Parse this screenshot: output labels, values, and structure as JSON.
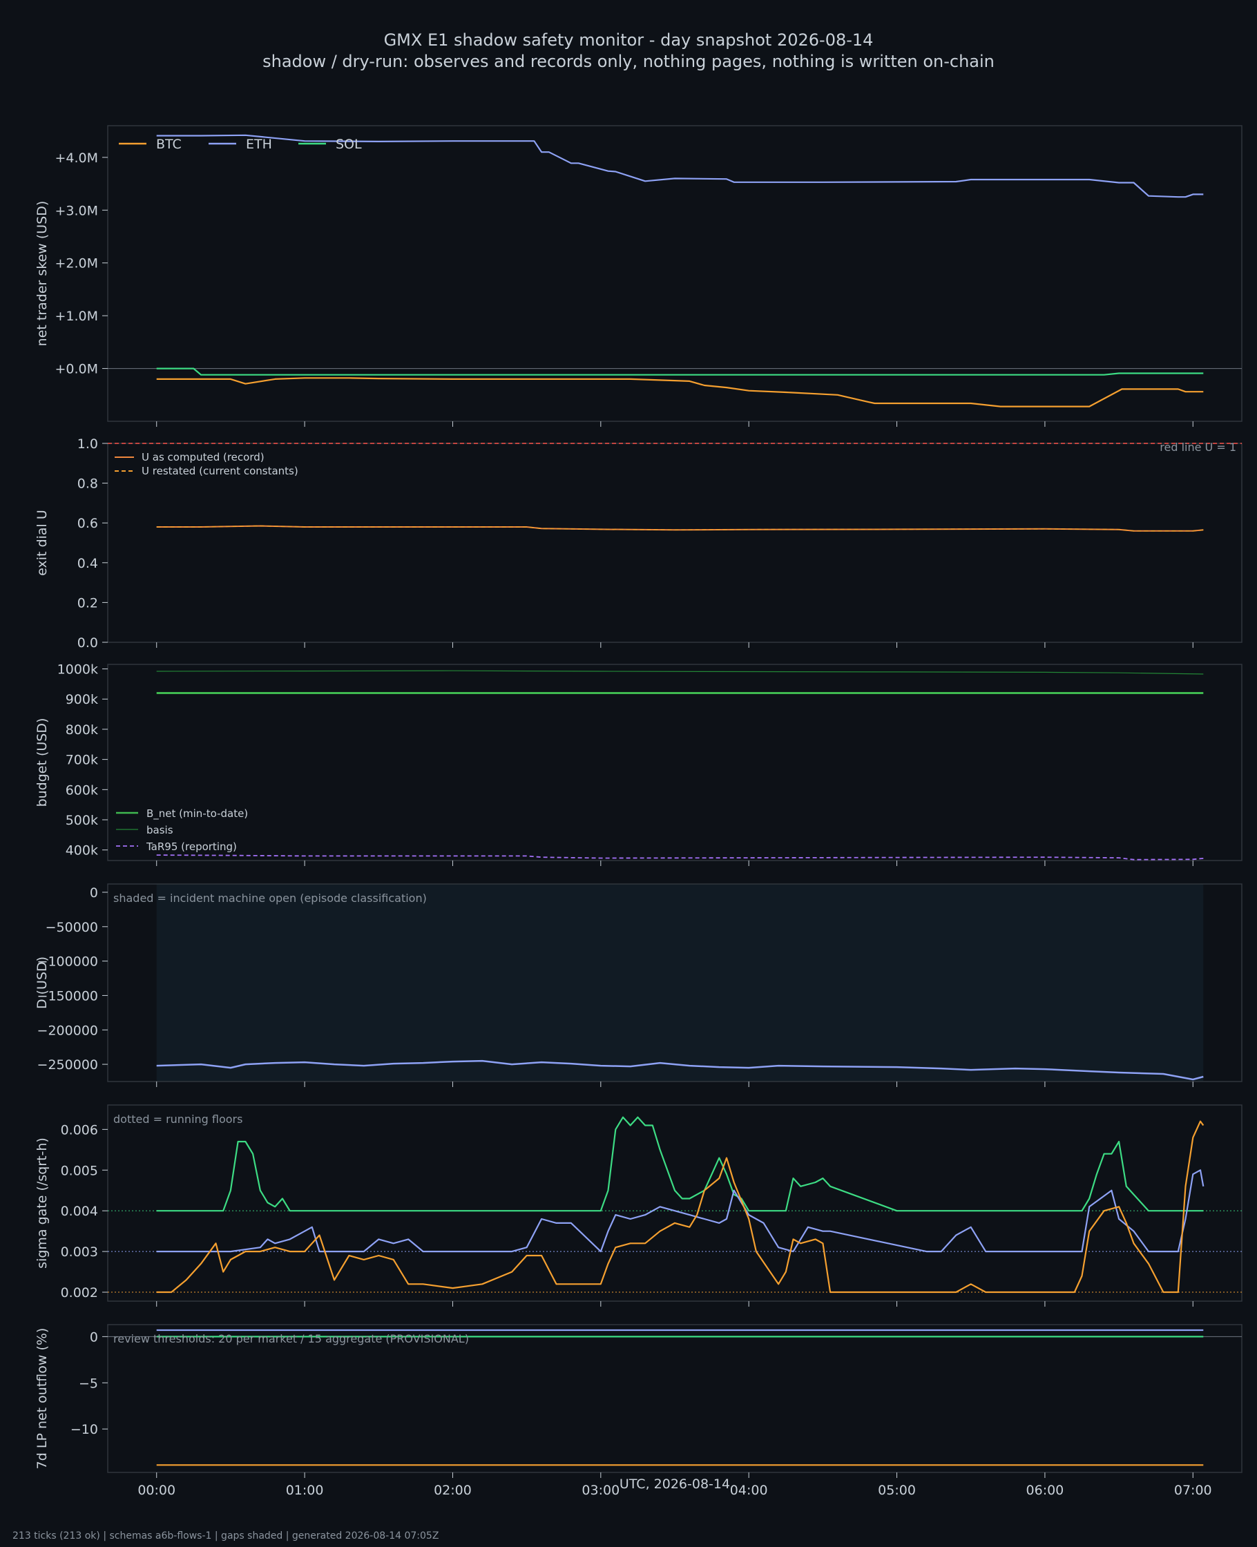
{
  "header": {
    "title": "GMX E1 shadow safety monitor - day snapshot 2026-08-14",
    "subtitle": "shadow / dry-run: observes and records only, nothing pages, nothing is written on-chain"
  },
  "footer": "213 ticks (213 ok) | schemas a6b-flows-1 | gaps shaded | generated 2026-08-14 07:05Z",
  "xaxis": {
    "label": "UTC, 2026-08-14",
    "ticks": [
      "00:00",
      "01:00",
      "02:00",
      "03:00",
      "04:00",
      "05:00",
      "06:00",
      "07:00"
    ],
    "range_hours": [
      -0.33,
      7.33
    ]
  },
  "colors": {
    "background": "#0d1117",
    "btc": "#f5a030",
    "eth": "#8ea2f5",
    "sol": "#3ddc84",
    "u_record": "#f0883e",
    "red_line": "#f85149",
    "budget": "#3fb950",
    "basis": "#238636",
    "tar95": "#a371f7",
    "shade": "#111b24"
  },
  "chart_data": [
    {
      "type": "line",
      "ylabel": "net trader skew (USD)",
      "ylim": [
        -1.0,
        4.6
      ],
      "y_ticks": [
        "+0.0M",
        "+1.0M",
        "+2.0M",
        "+3.0M",
        "+4.0M"
      ],
      "y_tick_values": [
        0,
        1,
        2,
        3,
        4
      ],
      "units": "M USD",
      "legend": [
        "BTC",
        "ETH",
        "SOL"
      ],
      "legend_position": "top-left",
      "zero_line": true,
      "series": [
        {
          "name": "ETH",
          "x": [
            0,
            0.3,
            0.6,
            1,
            1.5,
            2,
            2.4,
            2.55,
            2.6,
            2.65,
            2.8,
            2.85,
            3.05,
            3.1,
            3.3,
            3.5,
            3.85,
            3.9,
            4.5,
            5.4,
            5.5,
            6.3,
            6.5,
            6.6,
            6.7,
            6.9,
            6.95,
            7.0,
            7.07
          ],
          "y": [
            4.41,
            4.41,
            4.42,
            4.31,
            4.3,
            4.31,
            4.31,
            4.31,
            4.1,
            4.1,
            3.89,
            3.89,
            3.74,
            3.73,
            3.55,
            3.6,
            3.59,
            3.53,
            3.53,
            3.54,
            3.58,
            3.58,
            3.52,
            3.52,
            3.27,
            3.25,
            3.25,
            3.3,
            3.3
          ]
        },
        {
          "name": "SOL",
          "x": [
            0,
            0.25,
            0.3,
            1,
            1.5,
            2,
            3,
            4,
            5,
            6,
            6.4,
            6.5,
            7.07
          ],
          "y": [
            0.0,
            0.0,
            -0.12,
            -0.12,
            -0.12,
            -0.12,
            -0.12,
            -0.12,
            -0.12,
            -0.12,
            -0.12,
            -0.09,
            -0.09
          ]
        },
        {
          "name": "BTC",
          "x": [
            0,
            0.5,
            0.6,
            0.8,
            1,
            1.3,
            1.5,
            2,
            2.5,
            3.2,
            3.6,
            3.7,
            3.85,
            4.0,
            4.25,
            4.6,
            4.8,
            4.85,
            5.5,
            5.7,
            6.0,
            6.3,
            6.52,
            6.55,
            6.9,
            6.95,
            7.07
          ],
          "y": [
            -0.2,
            -0.2,
            -0.29,
            -0.2,
            -0.18,
            -0.18,
            -0.19,
            -0.2,
            -0.2,
            -0.2,
            -0.24,
            -0.32,
            -0.36,
            -0.42,
            -0.45,
            -0.5,
            -0.63,
            -0.66,
            -0.66,
            -0.72,
            -0.72,
            -0.72,
            -0.39,
            -0.39,
            -0.39,
            -0.44,
            -0.44
          ]
        }
      ]
    },
    {
      "type": "line",
      "ylabel": "exit dial U",
      "ylim": [
        0.0,
        1.0
      ],
      "y_ticks": [
        "0.0",
        "0.2",
        "0.4",
        "0.6",
        "0.8",
        "1.0"
      ],
      "y_tick_values": [
        0,
        0.2,
        0.4,
        0.6,
        0.8,
        1.0
      ],
      "legend": [
        "U as computed (record)",
        "U restated (current constants)"
      ],
      "legend_position": "top-left",
      "annotation": "red line U = 1",
      "threshold": 1.0,
      "series": [
        {
          "name": "U as computed (record)",
          "x": [
            0,
            0.3,
            0.7,
            1,
            2,
            2.5,
            2.6,
            3,
            3.5,
            4,
            5,
            6,
            6.5,
            6.6,
            7,
            7.07
          ],
          "y": [
            0.58,
            0.58,
            0.585,
            0.58,
            0.58,
            0.58,
            0.572,
            0.568,
            0.565,
            0.567,
            0.568,
            0.57,
            0.567,
            0.56,
            0.56,
            0.565
          ]
        },
        {
          "name": "U restated (current constants)",
          "x": [
            0,
            0.3,
            0.7,
            1,
            2,
            2.5,
            2.6,
            3,
            3.5,
            4,
            5,
            6,
            6.5,
            6.6,
            7,
            7.07
          ],
          "y": [
            0.58,
            0.58,
            0.585,
            0.58,
            0.58,
            0.58,
            0.572,
            0.568,
            0.565,
            0.567,
            0.568,
            0.57,
            0.567,
            0.56,
            0.56,
            0.565
          ]
        }
      ]
    },
    {
      "type": "line",
      "ylabel": "budget (USD)",
      "ylim": [
        365000,
        1015000
      ],
      "y_ticks": [
        "400k",
        "500k",
        "600k",
        "700k",
        "800k",
        "900k",
        "1000k"
      ],
      "y_tick_values": [
        400000,
        500000,
        600000,
        700000,
        800000,
        900000,
        1000000
      ],
      "legend": [
        "B_net (min-to-date)",
        "basis",
        "TaR95 (reporting)"
      ],
      "legend_position": "lower-left",
      "series": [
        {
          "name": "B_net (min-to-date)",
          "x": [
            0,
            7.07
          ],
          "y": [
            920000,
            920000
          ]
        },
        {
          "name": "basis",
          "x": [
            0,
            1,
            2,
            3,
            4,
            5,
            6,
            6.5,
            7.07
          ],
          "y": [
            992000,
            993000,
            994000,
            992000,
            991000,
            990000,
            989000,
            987000,
            983000
          ]
        },
        {
          "name": "TaR95 (reporting)",
          "x": [
            0,
            0.5,
            1,
            2,
            2.5,
            2.6,
            3,
            4,
            5,
            6,
            6.5,
            6.6,
            7,
            7.07
          ],
          "y": [
            383000,
            382000,
            380000,
            380000,
            380000,
            376000,
            373000,
            374000,
            375000,
            376000,
            374000,
            368000,
            369000,
            372000
          ]
        }
      ]
    },
    {
      "type": "line",
      "ylabel": "D (USD)",
      "ylim": [
        -275000,
        12000
      ],
      "y_ticks": [
        "−250000",
        "−200000",
        "−150000",
        "−100000",
        "−50000",
        "0"
      ],
      "y_tick_values": [
        -250000,
        -200000,
        -150000,
        -100000,
        -50000,
        0
      ],
      "annotation": "shaded = incident machine open (episode classification)",
      "shaded_x": [
        0,
        7.07
      ],
      "series": [
        {
          "name": "D",
          "x": [
            0,
            0.3,
            0.5,
            0.6,
            0.8,
            1,
            1.2,
            1.4,
            1.6,
            1.8,
            2,
            2.2,
            2.4,
            2.6,
            2.8,
            3,
            3.2,
            3.4,
            3.6,
            3.8,
            4,
            4.2,
            4.5,
            5,
            5.3,
            5.5,
            5.8,
            6,
            6.3,
            6.5,
            6.8,
            7,
            7.07
          ],
          "y": [
            -252000,
            -250000,
            -255000,
            -250000,
            -248000,
            -247000,
            -250000,
            -252000,
            -249000,
            -248000,
            -246000,
            -245000,
            -250000,
            -247000,
            -249000,
            -252000,
            -253000,
            -248000,
            -252000,
            -254000,
            -255000,
            -252000,
            -253000,
            -254000,
            -256000,
            -258000,
            -256000,
            -257000,
            -260000,
            -262000,
            -264000,
            -272000,
            -268000
          ]
        }
      ]
    },
    {
      "type": "line",
      "ylabel": "sigma gate (/sqrt-h)",
      "ylim": [
        0.00178,
        0.0066
      ],
      "y_ticks": [
        "0.002",
        "0.003",
        "0.004",
        "0.005",
        "0.006"
      ],
      "y_tick_values": [
        0.002,
        0.003,
        0.004,
        0.005,
        0.006
      ],
      "annotation": "dotted = running floors",
      "floors": [
        {
          "name": "SOL",
          "y": 0.004
        },
        {
          "name": "ETH",
          "y": 0.003
        },
        {
          "name": "BTC",
          "y": 0.002
        }
      ],
      "series": [
        {
          "name": "SOL",
          "x": [
            0,
            0.45,
            0.5,
            0.55,
            0.6,
            0.65,
            0.7,
            0.75,
            0.8,
            0.85,
            0.9,
            1.0,
            2.0,
            3.0,
            3.05,
            3.1,
            3.15,
            3.2,
            3.25,
            3.3,
            3.35,
            3.4,
            3.5,
            3.55,
            3.6,
            3.7,
            3.75,
            3.8,
            3.85,
            3.9,
            3.95,
            4.0,
            4.05,
            4.25,
            4.3,
            4.35,
            4.45,
            4.5,
            4.55,
            5.0,
            6.0,
            6.25,
            6.3,
            6.35,
            6.4,
            6.45,
            6.5,
            6.55,
            6.6,
            6.65,
            6.7,
            6.8,
            7.07
          ],
          "y": [
            0.004,
            0.004,
            0.0045,
            0.0057,
            0.0057,
            0.0054,
            0.0045,
            0.0042,
            0.0041,
            0.0043,
            0.004,
            0.004,
            0.004,
            0.004,
            0.0045,
            0.006,
            0.0063,
            0.0061,
            0.0063,
            0.0061,
            0.0061,
            0.0055,
            0.0045,
            0.0043,
            0.0043,
            0.0045,
            0.0049,
            0.0053,
            0.0049,
            0.0044,
            0.0043,
            0.004,
            0.004,
            0.004,
            0.0048,
            0.0046,
            0.0047,
            0.0048,
            0.0046,
            0.004,
            0.004,
            0.004,
            0.0043,
            0.0049,
            0.0054,
            0.0054,
            0.0057,
            0.0046,
            0.0044,
            0.0042,
            0.004,
            0.004,
            0.004
          ]
        },
        {
          "name": "ETH",
          "x": [
            0,
            0.5,
            0.7,
            0.75,
            0.8,
            0.9,
            1.0,
            1.05,
            1.1,
            1.4,
            1.5,
            1.6,
            1.7,
            1.8,
            2.0,
            2.4,
            2.5,
            2.6,
            2.7,
            2.8,
            3.0,
            3.05,
            3.1,
            3.2,
            3.3,
            3.4,
            3.5,
            3.6,
            3.7,
            3.8,
            3.85,
            3.9,
            4.0,
            4.1,
            4.2,
            4.3,
            4.4,
            4.5,
            4.55,
            5.2,
            5.3,
            5.4,
            5.5,
            5.6,
            6.0,
            6.25,
            6.3,
            6.45,
            6.5,
            6.6,
            6.7,
            6.8,
            6.9,
            6.95,
            7.0,
            7.05,
            7.07
          ],
          "y": [
            0.003,
            0.003,
            0.0031,
            0.0033,
            0.0032,
            0.0033,
            0.0035,
            0.0036,
            0.003,
            0.003,
            0.0033,
            0.0032,
            0.0033,
            0.003,
            0.003,
            0.003,
            0.0031,
            0.0038,
            0.0037,
            0.0037,
            0.003,
            0.0035,
            0.0039,
            0.0038,
            0.0039,
            0.0041,
            0.004,
            0.0039,
            0.0038,
            0.0037,
            0.0038,
            0.0045,
            0.0039,
            0.0037,
            0.0031,
            0.003,
            0.0036,
            0.0035,
            0.0035,
            0.003,
            0.003,
            0.0034,
            0.0036,
            0.003,
            0.003,
            0.003,
            0.0041,
            0.0045,
            0.0038,
            0.0035,
            0.003,
            0.003,
            0.003,
            0.0038,
            0.0049,
            0.005,
            0.0046
          ]
        },
        {
          "name": "BTC",
          "x": [
            0,
            0.1,
            0.2,
            0.3,
            0.4,
            0.45,
            0.5,
            0.6,
            0.7,
            0.8,
            0.9,
            1.0,
            1.1,
            1.2,
            1.3,
            1.4,
            1.5,
            1.6,
            1.7,
            1.8,
            2.0,
            2.2,
            2.4,
            2.5,
            2.6,
            2.7,
            3.0,
            3.05,
            3.1,
            3.2,
            3.3,
            3.4,
            3.5,
            3.6,
            3.65,
            3.7,
            3.8,
            3.85,
            3.9,
            4.0,
            4.05,
            4.2,
            4.25,
            4.3,
            4.35,
            4.45,
            4.5,
            4.55,
            5.0,
            5.4,
            5.5,
            5.6,
            6.0,
            6.2,
            6.25,
            6.3,
            6.4,
            6.5,
            6.55,
            6.6,
            6.7,
            6.8,
            6.9,
            6.95,
            7.0,
            7.05,
            7.07
          ],
          "y": [
            0.002,
            0.002,
            0.0023,
            0.0027,
            0.0032,
            0.0025,
            0.0028,
            0.003,
            0.003,
            0.0031,
            0.003,
            0.003,
            0.0034,
            0.0023,
            0.0029,
            0.0028,
            0.0029,
            0.0028,
            0.0022,
            0.0022,
            0.0021,
            0.0022,
            0.0025,
            0.0029,
            0.0029,
            0.0022,
            0.0022,
            0.0027,
            0.0031,
            0.0032,
            0.0032,
            0.0035,
            0.0037,
            0.0036,
            0.0039,
            0.0045,
            0.0048,
            0.0053,
            0.0047,
            0.0038,
            0.003,
            0.0022,
            0.0025,
            0.0033,
            0.0032,
            0.0033,
            0.0032,
            0.002,
            0.002,
            0.002,
            0.0022,
            0.002,
            0.002,
            0.002,
            0.0024,
            0.0035,
            0.004,
            0.0041,
            0.0037,
            0.0032,
            0.0027,
            0.002,
            0.002,
            0.0046,
            0.0058,
            0.0062,
            0.0061
          ]
        }
      ]
    },
    {
      "type": "line",
      "ylabel": "7d LP net outflow (%)",
      "ylim": [
        -14.7,
        1.3
      ],
      "y_ticks": [
        "−10",
        "−5",
        "0"
      ],
      "y_tick_values": [
        -10,
        -5,
        0
      ],
      "annotation": "review thresholds: 20 per market / 15 aggregate (PROVISIONAL)",
      "zero_line": true,
      "series": [
        {
          "name": "ETH",
          "x": [
            0,
            7.07
          ],
          "y": [
            0.7,
            0.7
          ]
        },
        {
          "name": "SOL",
          "x": [
            0,
            7.07
          ],
          "y": [
            0.0,
            0.0
          ]
        },
        {
          "name": "BTC",
          "x": [
            0,
            7.07
          ],
          "y": [
            -13.9,
            -13.9
          ]
        }
      ]
    }
  ]
}
